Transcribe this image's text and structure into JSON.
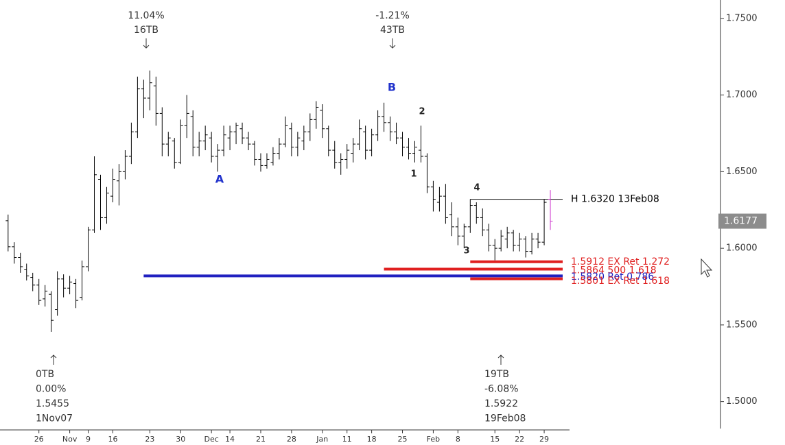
{
  "chart_data": {
    "type": "ohlc",
    "color": "#000000",
    "last_bar_color": "#cc33cc",
    "ohlc": [
      [
        1.618,
        1.622,
        1.598,
        1.601
      ],
      [
        1.601,
        1.604,
        1.59,
        1.594
      ],
      [
        1.594,
        1.597,
        1.584,
        1.588
      ],
      [
        1.586,
        1.59,
        1.579,
        1.582
      ],
      [
        1.581,
        1.584,
        1.572,
        1.576
      ],
      [
        1.576,
        1.58,
        1.563,
        1.566
      ],
      [
        1.567,
        1.576,
        1.562,
        1.572
      ],
      [
        1.57,
        1.572,
        1.5455,
        1.553
      ],
      [
        1.56,
        1.585,
        1.556,
        1.58
      ],
      [
        1.58,
        1.583,
        1.568,
        1.574
      ],
      [
        1.574,
        1.582,
        1.57,
        1.578
      ],
      [
        1.577,
        1.58,
        1.561,
        1.566
      ],
      [
        1.568,
        1.592,
        1.566,
        1.588
      ],
      [
        1.588,
        1.614,
        1.585,
        1.612
      ],
      [
        1.612,
        1.66,
        1.61,
        1.648
      ],
      [
        1.645,
        1.648,
        1.612,
        1.62
      ],
      [
        1.62,
        1.64,
        1.616,
        1.636
      ],
      [
        1.634,
        1.652,
        1.63,
        1.645
      ],
      [
        1.644,
        1.655,
        1.628,
        1.65
      ],
      [
        1.65,
        1.664,
        1.645,
        1.66
      ],
      [
        1.66,
        1.682,
        1.655,
        1.676
      ],
      [
        1.676,
        1.712,
        1.672,
        1.704
      ],
      [
        1.704,
        1.71,
        1.685,
        1.698
      ],
      [
        1.698,
        1.716,
        1.69,
        1.708
      ],
      [
        1.706,
        1.712,
        1.68,
        1.688
      ],
      [
        1.688,
        1.692,
        1.66,
        1.668
      ],
      [
        1.668,
        1.676,
        1.66,
        1.672
      ],
      [
        1.67,
        1.672,
        1.652,
        1.656
      ],
      [
        1.656,
        1.684,
        1.655,
        1.68
      ],
      [
        1.68,
        1.7,
        1.672,
        1.688
      ],
      [
        1.686,
        1.69,
        1.66,
        1.666
      ],
      [
        1.666,
        1.676,
        1.66,
        1.67
      ],
      [
        1.67,
        1.68,
        1.664,
        1.674
      ],
      [
        1.672,
        1.676,
        1.656,
        1.66
      ],
      [
        1.66,
        1.668,
        1.65,
        1.664
      ],
      [
        1.664,
        1.68,
        1.66,
        1.674
      ],
      [
        1.672,
        1.68,
        1.664,
        1.676
      ],
      [
        1.676,
        1.682,
        1.668,
        1.68
      ],
      [
        1.678,
        1.682,
        1.668,
        1.672
      ],
      [
        1.672,
        1.676,
        1.664,
        1.668
      ],
      [
        1.668,
        1.67,
        1.654,
        1.658
      ],
      [
        1.658,
        1.662,
        1.65,
        1.654
      ],
      [
        1.654,
        1.662,
        1.652,
        1.658
      ],
      [
        1.656,
        1.666,
        1.654,
        1.662
      ],
      [
        1.662,
        1.672,
        1.658,
        1.668
      ],
      [
        1.668,
        1.686,
        1.666,
        1.68
      ],
      [
        1.678,
        1.682,
        1.66,
        1.666
      ],
      [
        1.666,
        1.676,
        1.66,
        1.672
      ],
      [
        1.67,
        1.68,
        1.664,
        1.676
      ],
      [
        1.676,
        1.688,
        1.67,
        1.684
      ],
      [
        1.684,
        1.696,
        1.678,
        1.692
      ],
      [
        1.69,
        1.694,
        1.672,
        1.678
      ],
      [
        1.678,
        1.68,
        1.66,
        1.664
      ],
      [
        1.664,
        1.67,
        1.652,
        1.656
      ],
      [
        1.656,
        1.662,
        1.648,
        1.658
      ],
      [
        1.658,
        1.668,
        1.652,
        1.664
      ],
      [
        1.662,
        1.672,
        1.656,
        1.668
      ],
      [
        1.668,
        1.684,
        1.664,
        1.678
      ],
      [
        1.676,
        1.68,
        1.658,
        1.664
      ],
      [
        1.664,
        1.678,
        1.66,
        1.674
      ],
      [
        1.674,
        1.69,
        1.67,
        1.686
      ],
      [
        1.686,
        1.695,
        1.676,
        1.682
      ],
      [
        1.682,
        1.686,
        1.67,
        1.676
      ],
      [
        1.676,
        1.682,
        1.668,
        1.672
      ],
      [
        1.672,
        1.676,
        1.66,
        1.666
      ],
      [
        1.666,
        1.672,
        1.658,
        1.662
      ],
      [
        1.662,
        1.67,
        1.656,
        1.666
      ],
      [
        1.664,
        1.68,
        1.656,
        1.66
      ],
      [
        1.66,
        1.662,
        1.636,
        1.64
      ],
      [
        1.64,
        1.644,
        1.624,
        1.632
      ],
      [
        1.63,
        1.64,
        1.624,
        1.634
      ],
      [
        1.634,
        1.642,
        1.616,
        1.62
      ],
      [
        1.622,
        1.63,
        1.608,
        1.614
      ],
      [
        1.614,
        1.62,
        1.602,
        1.608
      ],
      [
        1.608,
        1.616,
        1.6,
        1.614
      ],
      [
        1.614,
        1.632,
        1.61,
        1.628
      ],
      [
        1.628,
        1.63,
        1.616,
        1.62
      ],
      [
        1.62,
        1.626,
        1.608,
        1.612
      ],
      [
        1.612,
        1.616,
        1.598,
        1.602
      ],
      [
        1.602,
        1.606,
        1.5922,
        1.6
      ],
      [
        1.6,
        1.612,
        1.598,
        1.608
      ],
      [
        1.606,
        1.614,
        1.6,
        1.61
      ],
      [
        1.61,
        1.612,
        1.598,
        1.602
      ],
      [
        1.602,
        1.61,
        1.598,
        1.606
      ],
      [
        1.606,
        1.608,
        1.594,
        1.598
      ],
      [
        1.598,
        1.61,
        1.596,
        1.606
      ],
      [
        1.606,
        1.61,
        1.6,
        1.604
      ],
      [
        1.604,
        1.632,
        1.602,
        1.63
      ],
      [
        1.632,
        1.638,
        1.612,
        1.6177
      ]
    ],
    "ylim": [
      1.4815,
      1.762
    ],
    "yticks": [
      {
        "value": 1.5,
        "label": "1.5000"
      },
      {
        "value": 1.55,
        "label": "1.5500"
      },
      {
        "value": 1.6,
        "label": "1.6000"
      },
      {
        "value": 1.65,
        "label": "1.6500"
      },
      {
        "value": 1.7,
        "label": "1.7000"
      },
      {
        "value": 1.75,
        "label": "1.7500"
      }
    ],
    "xlim": [
      -0.2,
      90
    ],
    "xticks": [
      {
        "value": 5,
        "label": "26"
      },
      {
        "value": 10,
        "label": "Nov"
      },
      {
        "value": 13,
        "label": "9"
      },
      {
        "value": 17,
        "label": "16"
      },
      {
        "value": 23,
        "label": "23"
      },
      {
        "value": 28,
        "label": "30"
      },
      {
        "value": 33,
        "label": "Dec"
      },
      {
        "value": 36,
        "label": "14"
      },
      {
        "value": 41,
        "label": "21"
      },
      {
        "value": 46,
        "label": "28"
      },
      {
        "value": 51,
        "label": "Jan"
      },
      {
        "value": 55,
        "label": "11"
      },
      {
        "value": 59,
        "label": "18"
      },
      {
        "value": 64,
        "label": "25"
      },
      {
        "value": 69,
        "label": "Feb"
      },
      {
        "value": 73,
        "label": "8"
      },
      {
        "value": 79,
        "label": "15"
      },
      {
        "value": 83,
        "label": "22"
      },
      {
        "value": 87,
        "label": "29"
      }
    ],
    "last_price": {
      "value": 1.6177,
      "label": "1.6177"
    },
    "levels": [
      {
        "value": 1.632,
        "label": "H 1.6320 13Feb08",
        "color": "#000000"
      },
      {
        "value": 1.5912,
        "label": "1.5912 EX Ret 1.272",
        "color": "#e02020"
      },
      {
        "value": 1.5864,
        "label": "1.5864 500 1.618",
        "color": "#e02020"
      },
      {
        "value": 1.582,
        "label": "1.5820 Ret 0.786",
        "color": "#2020c0"
      },
      {
        "value": 1.5801,
        "label": "1.5801 EX Ret 1.618",
        "color": "#e02020"
      }
    ],
    "annotations_top": [
      [
        "11.04%",
        "16TB"
      ],
      [
        "-1.21%",
        "43TB"
      ]
    ],
    "annotations_bottom": [
      [
        "0TB",
        "0.00%",
        "1.5455",
        "1Nov07"
      ],
      [
        "19TB",
        "-6.08%",
        "1.5922",
        "19Feb08"
      ]
    ],
    "wave_labels": [
      "A",
      "B",
      "1",
      "2",
      "3",
      "4"
    ]
  }
}
